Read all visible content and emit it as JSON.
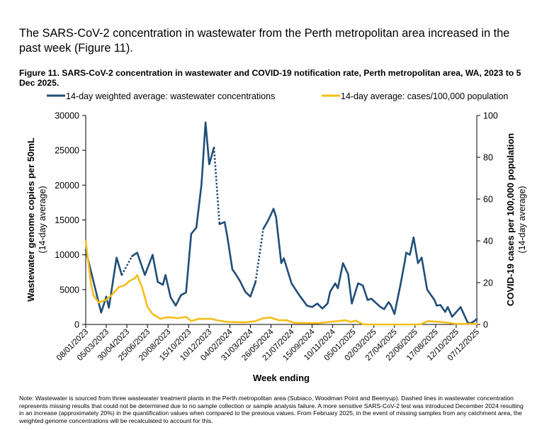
{
  "intro_text": "The SARS-CoV-2 concentration in wastewater from the Perth metropolitan area increased in the past week (Figure 11).",
  "note": "Note: Wastewater is sourced from three wastewater treatment plants in the Perth metropolitan area (Subiaco, Woodman Point and Beenyup). Dashed lines in wastewater concentration represents missing results that could not be determined due to no sample collection or sample analysis failure. A more sensitive SARS-CoV-2 test was introduced December 2024 resulting in an increase (approximately 20%) in the quantification values when compared to the previous values. From February 2025, in the event of missing samples from any catchment area, the weighted genome concentrations will be recalculated to account for this.",
  "chart_data": {
    "type": "line",
    "title": "Figure 11. SARS-CoV-2 concentration in wastewater and COVID-19 notification rate, Perth metropolitan area, WA, 2023 to 5 Dec 2025.",
    "xlabel": "Week ending",
    "ylabel": "Wastewater genome copies per 50mL",
    "ylabel_sub": "(14-day average)",
    "y2label": "COVID-19 cases per 100,000 population",
    "y2label_sub": "(14-day average)",
    "ylim": [
      0,
      30000
    ],
    "y2lim": [
      0,
      100
    ],
    "yticks": [
      "0",
      "5000",
      "10000",
      "15000",
      "20000",
      "25000",
      "30000"
    ],
    "y2ticks": [
      "0",
      "20",
      "40",
      "60",
      "80",
      "100"
    ],
    "xticks": [
      "08/01/2023",
      "05/03/2023",
      "30/04/2023",
      "25/06/2023",
      "20/08/2023",
      "15/10/2023",
      "10/12/2023",
      "04/02/2024",
      "31/03/2024",
      "26/05/2024",
      "21/07/2024",
      "15/09/2024",
      "10/11/2024",
      "05/01/2025",
      "02/03/2025",
      "27/04/2025",
      "22/06/2025",
      "17/08/2025",
      "12/10/2025",
      "07/12/2025"
    ],
    "xlim": [
      "2023-01-08",
      "2025-12-07"
    ],
    "grid": false,
    "legend_position": "top",
    "series": [
      {
        "name": "14-day weighted average: wastewater concentrations",
        "axis": "left",
        "color": "#1f4e79",
        "dashed_between_segments": true,
        "segments": [
          [
            [
              "2023-01-08",
              10700
            ],
            [
              "2023-02-19",
              1700
            ],
            [
              "2023-03-05",
              4000
            ],
            [
              "2023-03-12",
              2400
            ],
            [
              "2023-04-02",
              9600
            ],
            [
              "2023-04-16",
              7100
            ]
          ],
          [
            [
              "2023-05-14",
              9800
            ],
            [
              "2023-05-28",
              10300
            ],
            [
              "2023-06-18",
              7100
            ],
            [
              "2023-07-09",
              10000
            ],
            [
              "2023-07-23",
              6100
            ],
            [
              "2023-08-06",
              5700
            ],
            [
              "2023-08-13",
              7100
            ],
            [
              "2023-08-27",
              3900
            ],
            [
              "2023-09-10",
              2700
            ],
            [
              "2023-09-24",
              4200
            ],
            [
              "2023-10-08",
              4600
            ],
            [
              "2023-10-22",
              13000
            ],
            [
              "2023-11-05",
              13900
            ],
            [
              "2023-11-19",
              20100
            ],
            [
              "2023-11-30",
              29000
            ],
            [
              "2023-12-10",
              23000
            ],
            [
              "2023-12-23",
              25400
            ]
          ],
          [
            [
              "2024-01-07",
              14400
            ],
            [
              "2024-01-21",
              14700
            ],
            [
              "2024-01-28",
              12700
            ],
            [
              "2024-02-11",
              7900
            ],
            [
              "2024-02-18",
              7400
            ],
            [
              "2024-03-03",
              6200
            ],
            [
              "2024-03-17",
              4700
            ],
            [
              "2024-03-31",
              4000
            ],
            [
              "2024-04-14",
              6100
            ]
          ],
          [
            [
              "2024-05-05",
              13700
            ],
            [
              "2024-05-19",
              15000
            ],
            [
              "2024-06-02",
              16600
            ],
            [
              "2024-06-09",
              15400
            ],
            [
              "2024-06-23",
              8800
            ],
            [
              "2024-06-30",
              9500
            ],
            [
              "2024-07-21",
              5900
            ],
            [
              "2024-08-11",
              4200
            ],
            [
              "2024-09-01",
              2700
            ],
            [
              "2024-09-15",
              2500
            ],
            [
              "2024-09-29",
              3000
            ],
            [
              "2024-10-13",
              2300
            ],
            [
              "2024-10-27",
              3000
            ],
            [
              "2024-11-03",
              4700
            ],
            [
              "2024-11-17",
              5900
            ],
            [
              "2024-11-24",
              5200
            ],
            [
              "2024-12-08",
              8800
            ],
            [
              "2024-12-22",
              7200
            ],
            [
              "2025-01-01",
              3000
            ],
            [
              "2025-01-18",
              5900
            ],
            [
              "2025-01-31",
              5600
            ],
            [
              "2025-02-13",
              3500
            ],
            [
              "2025-02-23",
              3700
            ],
            [
              "2025-03-20",
              2500
            ],
            [
              "2025-03-30",
              2200
            ],
            [
              "2025-04-11",
              3200
            ],
            [
              "2025-04-17",
              2800
            ],
            [
              "2025-04-27",
              1500
            ],
            [
              "2025-05-13",
              5600
            ],
            [
              "2025-05-25",
              9000
            ],
            [
              "2025-05-29",
              10300
            ],
            [
              "2025-06-08",
              10000
            ],
            [
              "2025-06-18",
              12500
            ],
            [
              "2025-06-30",
              8800
            ],
            [
              "2025-07-10",
              9600
            ],
            [
              "2025-07-25",
              5000
            ],
            [
              "2025-08-14",
              3500
            ],
            [
              "2025-08-20",
              2700
            ],
            [
              "2025-08-30",
              2800
            ],
            [
              "2025-09-12",
              1800
            ],
            [
              "2025-09-19",
              2500
            ],
            [
              "2025-10-01",
              1100
            ],
            [
              "2025-10-24",
              2500
            ],
            [
              "2025-11-12",
              300
            ],
            [
              "2025-11-19",
              150
            ],
            [
              "2025-12-01",
              500
            ],
            [
              "2025-12-07",
              800
            ]
          ]
        ]
      },
      {
        "name": "14-day average: cases/100,000 population",
        "axis": "right",
        "color": "#f5be1a",
        "segments": [
          [
            [
              "2023-01-08",
              40
            ],
            [
              "2023-01-22",
              20
            ],
            [
              "2023-01-29",
              14
            ],
            [
              "2023-02-12",
              10.5
            ],
            [
              "2023-03-05",
              11.8
            ],
            [
              "2023-03-19",
              14
            ],
            [
              "2023-04-09",
              18
            ],
            [
              "2023-04-23",
              18.6
            ],
            [
              "2023-05-07",
              20.8
            ],
            [
              "2023-05-21",
              22
            ],
            [
              "2023-05-28",
              23.6
            ],
            [
              "2023-06-11",
              17.4
            ],
            [
              "2023-06-25",
              8.4
            ],
            [
              "2023-07-09",
              5
            ],
            [
              "2023-07-30",
              2.7
            ],
            [
              "2023-08-20",
              3.5
            ],
            [
              "2023-09-17",
              3
            ],
            [
              "2023-10-08",
              3.6
            ],
            [
              "2023-10-22",
              1.6
            ],
            [
              "2023-11-12",
              2.7
            ],
            [
              "2023-12-17",
              2.7
            ],
            [
              "2023-12-31",
              2
            ],
            [
              "2024-01-28",
              1.2
            ],
            [
              "2024-03-17",
              1
            ],
            [
              "2024-04-14",
              1.6
            ],
            [
              "2024-05-05",
              3
            ],
            [
              "2024-05-26",
              3.3
            ],
            [
              "2024-06-16",
              2
            ],
            [
              "2024-07-07",
              2
            ],
            [
              "2024-07-28",
              0.8
            ],
            [
              "2024-09-29",
              0.6
            ],
            [
              "2024-11-24",
              1.6
            ],
            [
              "2024-12-15",
              2
            ],
            [
              "2024-12-29",
              1.2
            ],
            [
              "2025-01-12",
              1.8
            ],
            [
              "2025-02-02",
              0
            ],
            [
              "2025-07-06",
              0
            ],
            [
              "2025-07-27",
              1.6
            ],
            [
              "2025-08-31",
              1.2
            ],
            [
              "2025-10-12",
              0.3
            ],
            [
              "2025-12-07",
              0.3
            ]
          ]
        ]
      }
    ]
  }
}
